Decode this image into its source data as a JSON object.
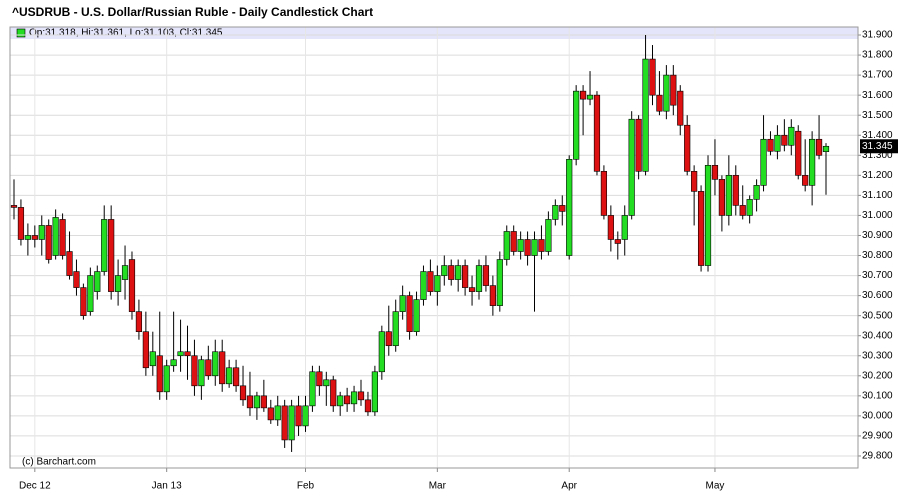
{
  "chart_data": {
    "type": "candlestick",
    "title": "^USDRUB - U.S. Dollar/Russian Ruble - Daily Candlestick Chart",
    "ohlc_label": "Op:31.318, Hi:31.361, Lo:31.103, Cl:31.345",
    "credit": "(c) Barchart.com",
    "up_color": "#22dd22",
    "down_color": "#dd1111",
    "grid": true,
    "categories": [
      null,
      null,
      null,
      "Dec 12",
      null,
      null,
      null,
      null,
      null,
      null,
      null,
      null,
      null,
      null,
      null,
      null,
      null,
      null,
      null,
      null,
      null,
      null,
      "Jan 13",
      null,
      null,
      null,
      null,
      null,
      null,
      null,
      null,
      null,
      null,
      null,
      null,
      null,
      null,
      null,
      null,
      null,
      null,
      null,
      "Feb",
      null,
      null,
      null,
      null,
      null,
      null,
      null,
      null,
      null,
      null,
      null,
      null,
      null,
      null,
      null,
      null,
      null,
      null,
      "Mar",
      null,
      null,
      null,
      null,
      null,
      null,
      null,
      null,
      null,
      null,
      null,
      null,
      null,
      null,
      null,
      null,
      null,
      null,
      "Apr",
      null,
      null,
      null,
      null,
      null,
      null,
      null,
      null,
      null,
      null,
      null,
      null,
      null,
      null,
      null,
      null,
      null,
      null,
      null,
      null,
      "May",
      null,
      null,
      null,
      null,
      null,
      null,
      null,
      null,
      null,
      null,
      null,
      null,
      null,
      null,
      null,
      null
    ],
    "open": [
      31.05,
      31.04,
      30.88,
      30.9,
      30.88,
      30.95,
      30.8,
      30.98,
      30.82,
      30.72,
      30.64,
      30.52,
      30.62,
      30.72,
      30.98,
      30.62,
      30.68,
      30.78,
      30.52,
      30.42,
      30.25,
      30.3,
      30.12,
      30.25,
      30.3,
      30.32,
      30.3,
      30.15,
      30.28,
      30.2,
      30.32,
      30.16,
      30.24,
      30.15,
      30.1,
      30.04,
      30.1,
      30.04,
      29.98,
      30.05,
      29.88,
      30.05,
      29.95,
      30.05,
      30.22,
      30.15,
      30.18,
      30.05,
      30.1,
      30.06,
      30.12,
      30.08,
      30.02,
      30.22,
      30.42,
      30.35,
      30.52,
      30.6,
      30.42,
      30.58,
      30.72,
      30.62,
      30.7,
      30.75,
      30.68,
      30.75,
      30.64,
      30.62,
      30.75,
      30.65,
      30.55,
      30.78,
      30.92,
      30.82,
      30.88,
      30.8,
      30.88,
      30.82,
      30.98,
      31.05,
      30.8,
      31.28,
      31.62,
      31.58,
      31.6,
      31.22,
      31.0,
      30.88,
      30.88,
      31.0,
      31.48,
      31.22,
      31.78,
      31.6,
      31.52,
      31.7,
      31.62,
      31.45,
      31.22,
      31.12,
      30.75,
      31.25,
      31.18,
      31.0,
      31.2,
      31.05,
      31.0,
      31.08,
      31.15,
      31.38,
      31.32,
      31.4,
      31.35,
      31.42,
      31.2,
      31.15,
      31.38,
      31.318
    ],
    "high": [
      31.18,
      31.08,
      30.96,
      30.95,
      31.0,
      30.98,
      31.03,
      31.01,
      30.92,
      30.78,
      30.66,
      30.74,
      30.75,
      31.05,
      31.05,
      30.78,
      30.85,
      30.82,
      30.58,
      30.52,
      30.42,
      30.52,
      30.28,
      30.52,
      30.48,
      30.45,
      30.38,
      30.3,
      30.35,
      30.38,
      30.38,
      30.28,
      30.28,
      30.25,
      30.22,
      30.12,
      30.18,
      30.08,
      30.1,
      30.08,
      30.08,
      30.1,
      30.1,
      30.25,
      30.25,
      30.22,
      30.2,
      30.12,
      30.14,
      30.15,
      30.18,
      30.12,
      30.25,
      30.45,
      30.55,
      30.58,
      30.65,
      30.62,
      30.62,
      30.75,
      30.78,
      30.75,
      30.8,
      30.78,
      30.78,
      30.78,
      30.7,
      30.78,
      30.8,
      30.7,
      30.82,
      30.95,
      30.95,
      30.92,
      30.92,
      30.92,
      30.95,
      31.02,
      31.08,
      31.1,
      31.3,
      31.65,
      31.65,
      31.72,
      31.62,
      31.25,
      31.05,
      30.92,
      31.05,
      31.52,
      31.5,
      31.9,
      31.85,
      31.72,
      31.75,
      31.75,
      31.65,
      31.5,
      31.25,
      31.15,
      31.3,
      31.38,
      31.2,
      31.3,
      31.25,
      31.15,
      31.1,
      31.18,
      31.5,
      31.42,
      31.45,
      31.48,
      31.48,
      31.45,
      31.38,
      31.42,
      31.5,
      31.361
    ],
    "low": [
      30.98,
      30.85,
      30.8,
      30.84,
      30.8,
      30.76,
      30.78,
      30.78,
      30.68,
      30.6,
      30.48,
      30.5,
      30.58,
      30.7,
      30.58,
      30.55,
      30.58,
      30.48,
      30.38,
      30.2,
      30.2,
      30.08,
      30.08,
      30.22,
      30.22,
      30.18,
      30.1,
      30.08,
      30.18,
      30.15,
      30.12,
      30.14,
      30.12,
      30.05,
      30.0,
      29.98,
      30.02,
      29.96,
      29.95,
      29.84,
      29.82,
      29.9,
      29.92,
      30.02,
      30.1,
      30.05,
      30.02,
      30.0,
      30.02,
      30.02,
      30.05,
      30.0,
      30.0,
      30.18,
      30.3,
      30.32,
      30.48,
      30.38,
      30.4,
      30.55,
      30.6,
      30.55,
      30.65,
      30.65,
      30.62,
      30.6,
      30.55,
      30.58,
      30.62,
      30.5,
      30.52,
      30.75,
      30.8,
      30.78,
      30.75,
      30.52,
      30.78,
      30.8,
      30.95,
      30.95,
      30.78,
      31.25,
      31.4,
      31.55,
      31.2,
      30.98,
      30.82,
      30.78,
      30.8,
      30.98,
      31.18,
      31.2,
      31.55,
      31.5,
      31.48,
      31.5,
      31.4,
      31.2,
      30.95,
      30.72,
      30.72,
      31.1,
      30.92,
      30.95,
      31.0,
      30.98,
      30.96,
      31.02,
      31.12,
      31.3,
      31.28,
      31.32,
      31.3,
      31.18,
      31.12,
      31.05,
      31.28,
      31.103
    ],
    "close": [
      31.04,
      30.88,
      30.9,
      30.88,
      30.95,
      30.78,
      30.99,
      30.8,
      30.7,
      30.64,
      30.5,
      30.7,
      30.72,
      30.98,
      30.62,
      30.7,
      30.75,
      30.52,
      30.42,
      30.24,
      30.32,
      30.12,
      30.25,
      30.28,
      30.32,
      30.3,
      30.15,
      30.28,
      30.2,
      30.32,
      30.16,
      30.24,
      30.15,
      30.08,
      30.04,
      30.1,
      30.04,
      29.98,
      30.05,
      29.88,
      30.05,
      29.95,
      30.05,
      30.22,
      30.15,
      30.18,
      30.05,
      30.1,
      30.06,
      30.12,
      30.08,
      30.02,
      30.22,
      30.42,
      30.35,
      30.52,
      30.6,
      30.42,
      30.58,
      30.72,
      30.62,
      30.7,
      30.75,
      30.68,
      30.75,
      30.64,
      30.62,
      30.75,
      30.65,
      30.55,
      30.78,
      30.92,
      30.82,
      30.88,
      30.8,
      30.88,
      30.82,
      30.98,
      31.05,
      31.02,
      31.28,
      31.62,
      31.58,
      31.6,
      31.22,
      31.0,
      30.88,
      30.86,
      31.0,
      31.48,
      31.22,
      31.78,
      31.6,
      31.52,
      31.7,
      31.55,
      31.45,
      31.22,
      31.12,
      30.75,
      31.25,
      31.18,
      31.0,
      31.2,
      31.05,
      31.0,
      31.08,
      31.15,
      31.38,
      31.32,
      31.4,
      31.35,
      31.44,
      31.2,
      31.15,
      31.38,
      31.3,
      31.345
    ],
    "ylim": [
      29.74,
      31.94
    ],
    "yticks": [
      {
        "value": 29.8,
        "label": "29.800"
      },
      {
        "value": 29.9,
        "label": "29.900"
      },
      {
        "value": 30.0,
        "label": "30.000"
      },
      {
        "value": 30.1,
        "label": "30.100"
      },
      {
        "value": 30.2,
        "label": "30.200"
      },
      {
        "value": 30.3,
        "label": "30.300"
      },
      {
        "value": 30.4,
        "label": "30.400"
      },
      {
        "value": 30.5,
        "label": "30.500"
      },
      {
        "value": 30.6,
        "label": "30.600"
      },
      {
        "value": 30.7,
        "label": "30.700"
      },
      {
        "value": 30.8,
        "label": "30.800"
      },
      {
        "value": 30.9,
        "label": "30.900"
      },
      {
        "value": 31.0,
        "label": "31.000"
      },
      {
        "value": 31.1,
        "label": "31.100"
      },
      {
        "value": 31.2,
        "label": "31.200"
      },
      {
        "value": 31.3,
        "label": "31.300"
      },
      {
        "value": 31.4,
        "label": "31.400"
      },
      {
        "value": 31.5,
        "label": "31.500"
      },
      {
        "value": 31.6,
        "label": "31.600"
      },
      {
        "value": 31.7,
        "label": "31.700"
      },
      {
        "value": 31.8,
        "label": "31.800"
      },
      {
        "value": 31.9,
        "label": "31.900"
      }
    ]
  }
}
